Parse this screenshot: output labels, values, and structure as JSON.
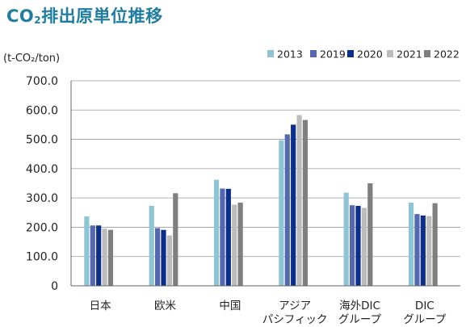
{
  "title": {
    "prefix": "CO",
    "sub": "2",
    "suffix": "排出原単位推移"
  },
  "chart_data": {
    "type": "bar",
    "ylabel": "(t-CO₂/ton)",
    "ylim": [
      0,
      700
    ],
    "yticks": [
      "0",
      "100.0",
      "200.0",
      "300.0",
      "400.0",
      "500.0",
      "600.0",
      "700.0"
    ],
    "categories": [
      [
        "日本"
      ],
      [
        "欧米"
      ],
      [
        "中国"
      ],
      [
        "アジア",
        "パシフィック"
      ],
      [
        "海外DIC",
        "グループ"
      ],
      [
        "DIC",
        "グループ"
      ]
    ],
    "series": [
      {
        "name": "2013",
        "color": "#8ec5d6",
        "values": [
          237,
          273,
          362,
          497,
          318,
          284
        ]
      },
      {
        "name": "2019",
        "color": "#5567b0",
        "values": [
          206,
          197,
          332,
          517,
          275,
          245
        ]
      },
      {
        "name": "2020",
        "color": "#0c2f8c",
        "values": [
          206,
          191,
          331,
          550,
          273,
          240
        ]
      },
      {
        "name": "2021",
        "color": "#bcbcbc",
        "values": [
          195,
          172,
          277,
          583,
          266,
          238
        ]
      },
      {
        "name": "2022",
        "color": "#7f7f7f",
        "values": [
          191,
          316,
          284,
          566,
          350,
          282
        ]
      }
    ],
    "legend_position": "top-right",
    "grid": true
  }
}
